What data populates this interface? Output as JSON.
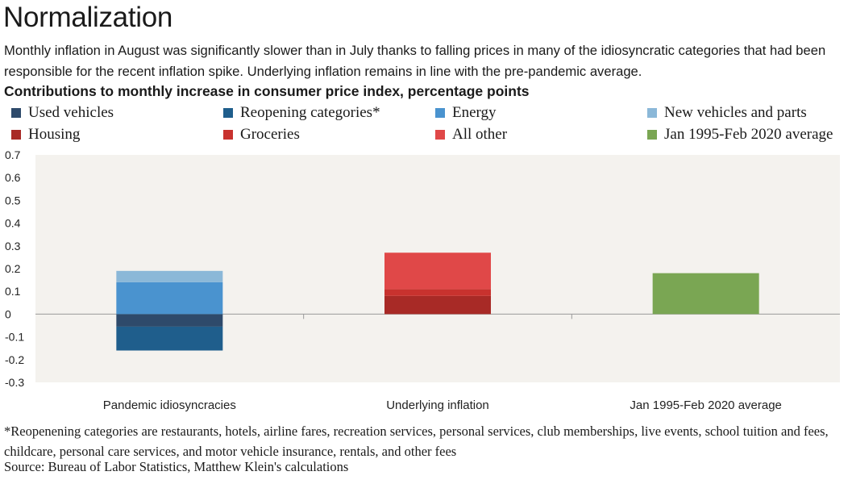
{
  "title": "Normalization",
  "subtitle": "Monthly inflation in August was significantly slower than in July thanks to falling prices in many of the idiosyncratic categories that had been responsible for the recent inflation spike. Underlying inflation remains in line with the pre-pandemic average.",
  "chart_heading": "Contributions to monthly increase in consumer price index, percentage points",
  "legend": [
    {
      "label": "Used vehicles",
      "color": "#2e4a6b"
    },
    {
      "label": "Reopening categories*",
      "color": "#1f5e8c"
    },
    {
      "label": "Energy",
      "color": "#4a93cf"
    },
    {
      "label": "New vehicles and parts",
      "color": "#8bb8d8"
    },
    {
      "label": "Housing",
      "color": "#a82a26"
    },
    {
      "label": "Groceries",
      "color": "#c8322e"
    },
    {
      "label": "All other",
      "color": "#e04848"
    },
    {
      "label": "Jan 1995-Feb 2020 average",
      "color": "#7aa653"
    }
  ],
  "chart_data": {
    "type": "bar",
    "stacked": true,
    "categories": [
      "Pandemic idiosyncracies",
      "Underlying inflation",
      "Jan 1995-Feb 2020 average"
    ],
    "y_ticks": [
      "0.7",
      "0.6",
      "0.5",
      "0.4",
      "0.3",
      "0.2",
      "0.1",
      "0",
      "-0.1",
      "-0.2",
      "-0.3"
    ],
    "ylim": [
      -0.3,
      0.7
    ],
    "grid": false,
    "legend_position": "top",
    "series": [
      {
        "name": "Used vehicles",
        "color": "#2e4a6b",
        "values": [
          -0.055,
          0,
          0
        ]
      },
      {
        "name": "Reopening categories*",
        "color": "#1f5e8c",
        "values": [
          -0.105,
          0,
          0
        ]
      },
      {
        "name": "Energy",
        "color": "#4a93cf",
        "values": [
          0.14,
          0,
          0
        ]
      },
      {
        "name": "New vehicles and parts",
        "color": "#8bb8d8",
        "values": [
          0.05,
          0,
          0
        ]
      },
      {
        "name": "Housing",
        "color": "#a82a26",
        "values": [
          0,
          0.08,
          0
        ]
      },
      {
        "name": "Groceries",
        "color": "#c8322e",
        "values": [
          0,
          0.03,
          0
        ]
      },
      {
        "name": "All other",
        "color": "#e04848",
        "values": [
          0,
          0.16,
          0
        ]
      },
      {
        "name": "Jan 1995-Feb 2020 average",
        "color": "#7aa653",
        "values": [
          0,
          0,
          0.18
        ]
      }
    ]
  },
  "footnote": "*Reopenening categories are restaurants, hotels, airline fares, recreation services, personal services,  club memberships, live events, school tuition and fees, childcare, personal care services, and motor vehicle insurance, rentals, and other fees",
  "source": "Source: Bureau of Labor Statistics, Matthew Klein's calculations"
}
